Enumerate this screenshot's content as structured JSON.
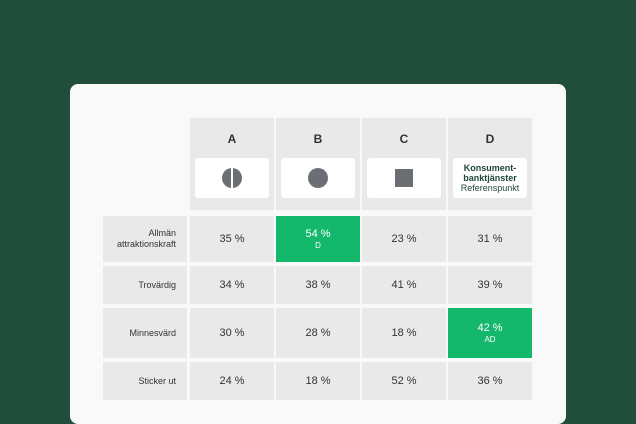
{
  "columns": [
    {
      "letter": "A",
      "icon": "half-circle-icon"
    },
    {
      "letter": "B",
      "icon": "circle-icon"
    },
    {
      "letter": "C",
      "icon": "square-icon"
    },
    {
      "letter": "D",
      "reference_name": "Konsument-\nbanktjänster",
      "reference_sub": "Referenspunkt"
    }
  ],
  "rows": [
    {
      "label": "Allmän\nattraktionskraft",
      "values": [
        "35 %",
        "54 %",
        "23 %",
        "31 %"
      ],
      "highlight": {
        "col": 1,
        "tag": "D"
      }
    },
    {
      "label": "Trovärdig",
      "values": [
        "34 %",
        "38 %",
        "41 %",
        "39 %"
      ]
    },
    {
      "label": "Minnesvärd",
      "values": [
        "30 %",
        "28 %",
        "18 %",
        "42 %"
      ],
      "highlight": {
        "col": 3,
        "tag": "AD"
      }
    },
    {
      "label": "Sticker ut",
      "values": [
        "24 %",
        "18 %",
        "52 %",
        "36 %"
      ]
    }
  ],
  "colors": {
    "background": "#214e3b",
    "card": "#f9f9f9",
    "cell": "#e9e9e9",
    "highlight": "#14b86d"
  }
}
